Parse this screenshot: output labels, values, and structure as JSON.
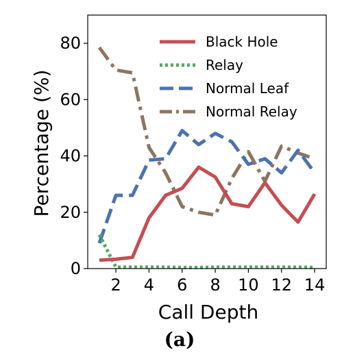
{
  "chart_data": {
    "type": "line",
    "title": "",
    "caption": "(a)",
    "xlabel": "Call Depth",
    "ylabel": "Percentage (%)",
    "xlim": [
      0.3,
      14.7
    ],
    "ylim": [
      0,
      90
    ],
    "xticks": [
      2,
      4,
      6,
      8,
      10,
      12,
      14
    ],
    "yticks": [
      0,
      20,
      40,
      60,
      80
    ],
    "grid": false,
    "legend_position": "top-right",
    "x": [
      1,
      2,
      3,
      4,
      5,
      6,
      7,
      8,
      9,
      10,
      11,
      12,
      13,
      14
    ],
    "series": [
      {
        "name": "Black Hole",
        "color": "#c44e52",
        "style": "solid",
        "values": [
          3,
          3.3,
          4,
          18,
          26,
          28.5,
          36,
          32.5,
          23,
          22,
          30.5,
          22.5,
          16.5,
          26.5
        ]
      },
      {
        "name": "Relay",
        "color": "#55a868",
        "style": "dotted",
        "values": [
          12,
          0.5,
          0.5,
          0.5,
          0.5,
          0.4,
          0.4,
          0.5,
          0.5,
          0.5,
          0.5,
          0.5,
          0.5,
          0.4
        ]
      },
      {
        "name": "Normal Leaf",
        "color": "#4c72b0",
        "style": "dashed",
        "values": [
          9,
          26,
          26,
          38.5,
          39,
          49,
          44,
          48,
          45,
          37,
          39,
          34,
          42,
          34
        ]
      },
      {
        "name": "Normal Relay",
        "color": "#8c7561",
        "style": "dashdot",
        "values": [
          78.5,
          70.5,
          69.5,
          43,
          34,
          22,
          20,
          19,
          32,
          41.5,
          31,
          43.5,
          41,
          39
        ]
      }
    ]
  }
}
